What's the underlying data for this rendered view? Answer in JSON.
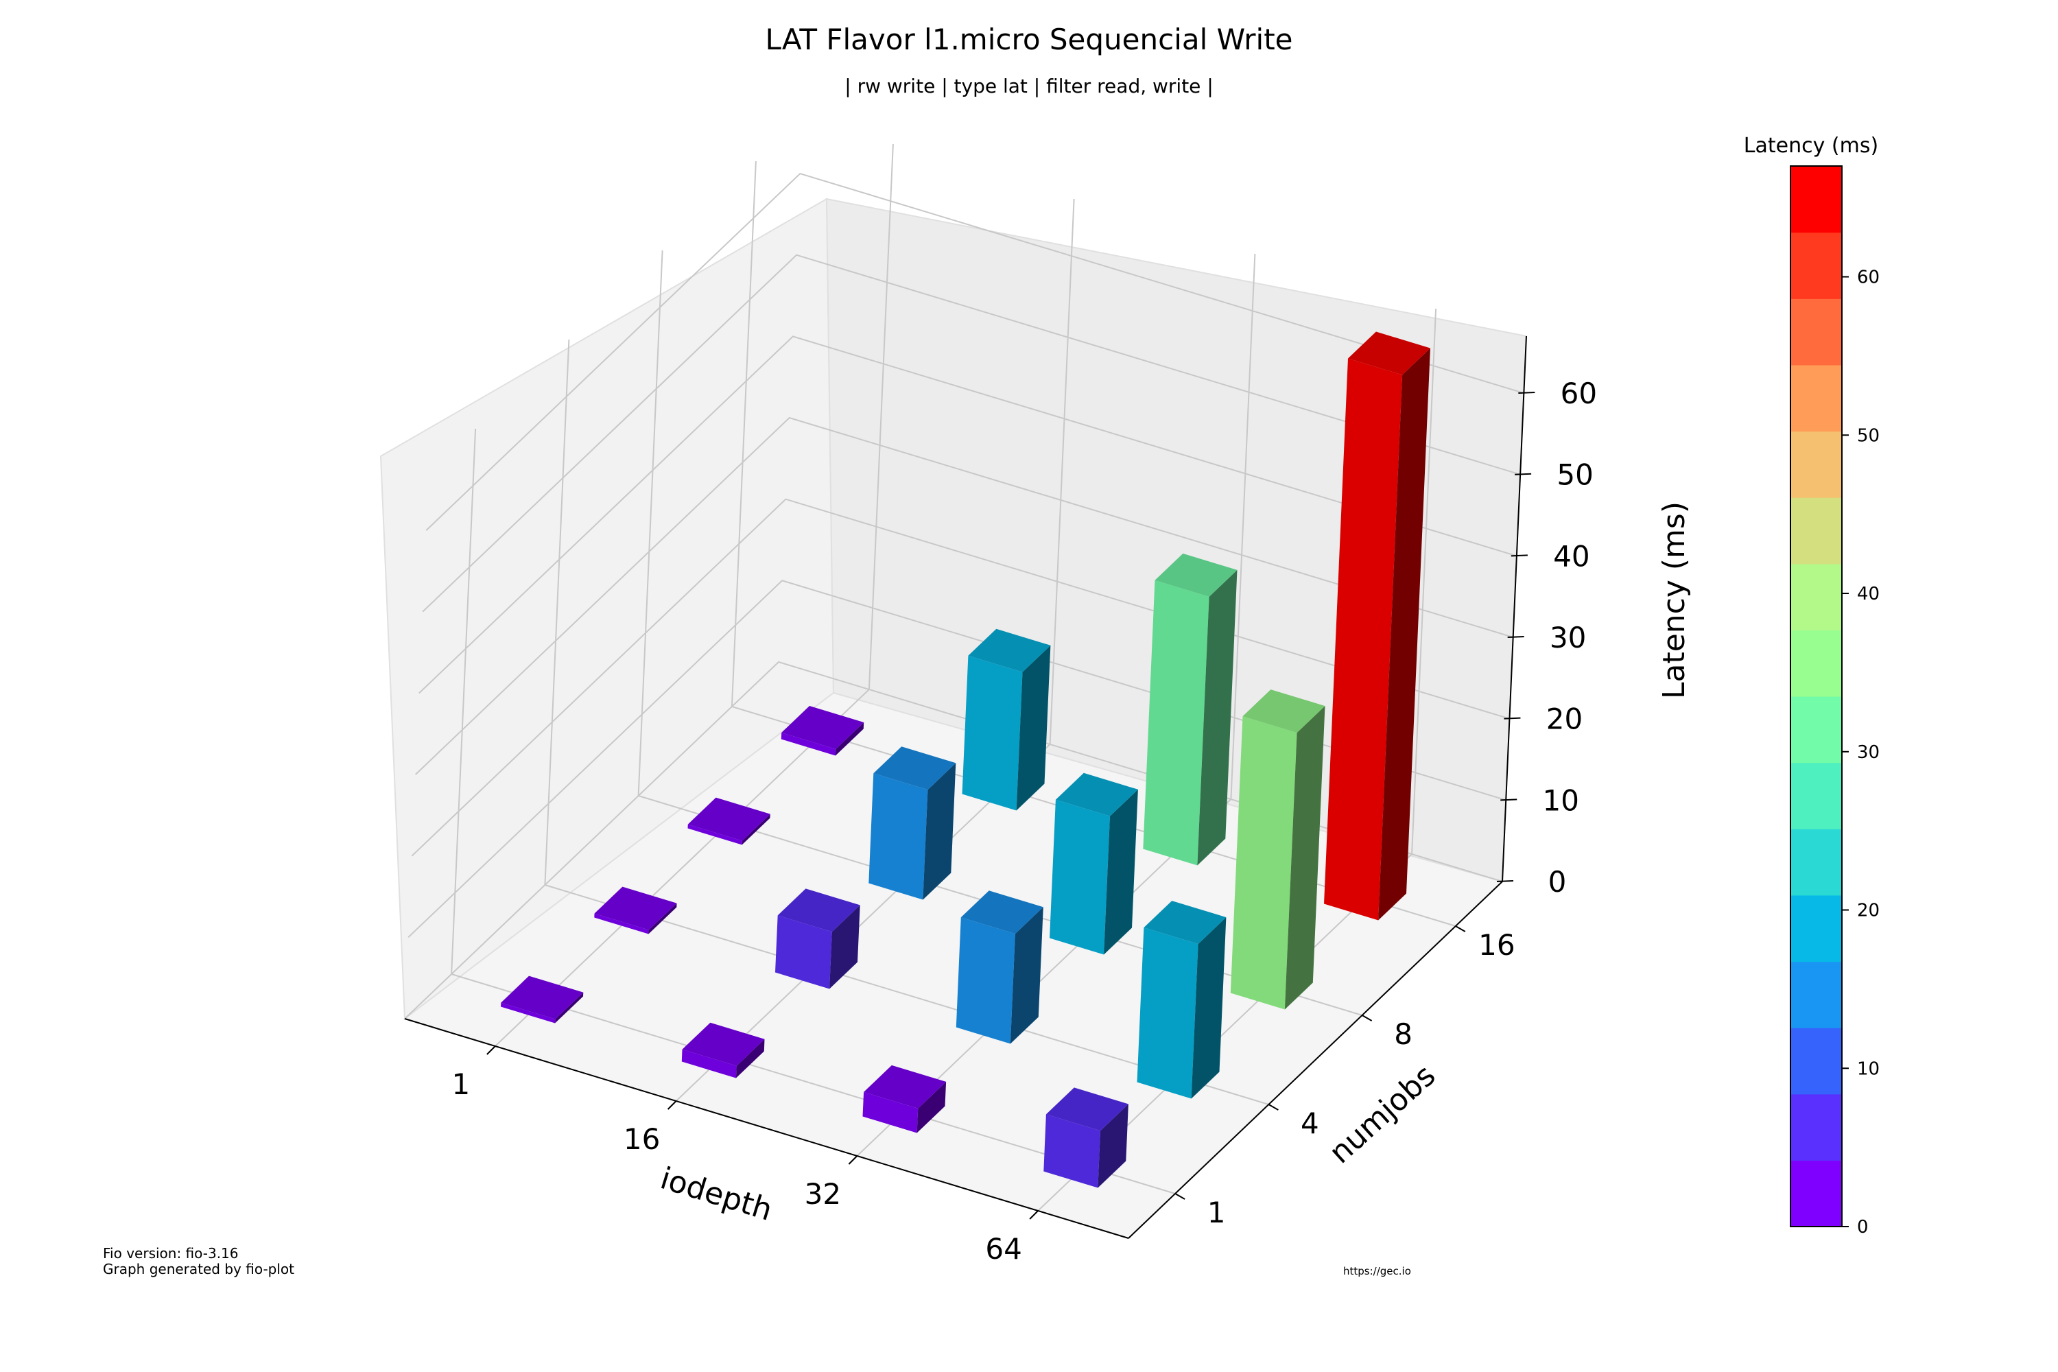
{
  "chart_data": {
    "type": "bar3d",
    "title": "LAT Flavor l1.micro Sequencial Write",
    "subtitle": "| rw write | type lat | filter read, write |",
    "xlabel": "iodepth",
    "ylabel": "numjobs",
    "zlabel": "Latency (ms)",
    "x_categories": [
      "1",
      "16",
      "32",
      "64"
    ],
    "y_categories": [
      "1",
      "4",
      "8",
      "16"
    ],
    "z_ticks": [
      "0",
      "10",
      "20",
      "30",
      "40",
      "50",
      "60"
    ],
    "zlim": [
      0,
      67
    ],
    "bars": [
      {
        "iodepth": "1",
        "numjobs": "1",
        "latency": 0.5
      },
      {
        "iodepth": "1",
        "numjobs": "4",
        "latency": 0.5
      },
      {
        "iodepth": "1",
        "numjobs": "8",
        "latency": 0.5
      },
      {
        "iodepth": "1",
        "numjobs": "16",
        "latency": 0.8
      },
      {
        "iodepth": "16",
        "numjobs": "1",
        "latency": 1.5
      },
      {
        "iodepth": "16",
        "numjobs": "4",
        "latency": 7.0
      },
      {
        "iodepth": "16",
        "numjobs": "8",
        "latency": 13.5
      },
      {
        "iodepth": "16",
        "numjobs": "16",
        "latency": 17.0
      },
      {
        "iodepth": "32",
        "numjobs": "1",
        "latency": 3.0
      },
      {
        "iodepth": "32",
        "numjobs": "4",
        "latency": 13.5
      },
      {
        "iodepth": "32",
        "numjobs": "8",
        "latency": 17.0
      },
      {
        "iodepth": "32",
        "numjobs": "16",
        "latency": 33.0
      },
      {
        "iodepth": "64",
        "numjobs": "1",
        "latency": 7.0
      },
      {
        "iodepth": "64",
        "numjobs": "4",
        "latency": 19.0
      },
      {
        "iodepth": "64",
        "numjobs": "8",
        "latency": 34.0
      },
      {
        "iodepth": "64",
        "numjobs": "16",
        "latency": 67.0
      }
    ],
    "colorbar": {
      "label": "Latency (ms)",
      "ticks": [
        "0",
        "10",
        "20",
        "30",
        "40",
        "50",
        "60"
      ],
      "range": [
        0,
        67
      ],
      "levels": [
        "#8000ff",
        "#5a30fe",
        "#3563fb",
        "#1996f3",
        "#06b9e6",
        "#2ad8d4",
        "#4ef0c0",
        "#72fca9",
        "#98fe8f",
        "#b2f98a",
        "#d4df80",
        "#f5c06f",
        "#ff9c58",
        "#ff6b3c",
        "#ff3a1e",
        "#ff0000"
      ]
    },
    "grid": true
  },
  "footer": {
    "fio_version": "Fio version: fio-3.16",
    "generated_by": "Graph generated by fio-plot",
    "url": "https://gec.io"
  }
}
